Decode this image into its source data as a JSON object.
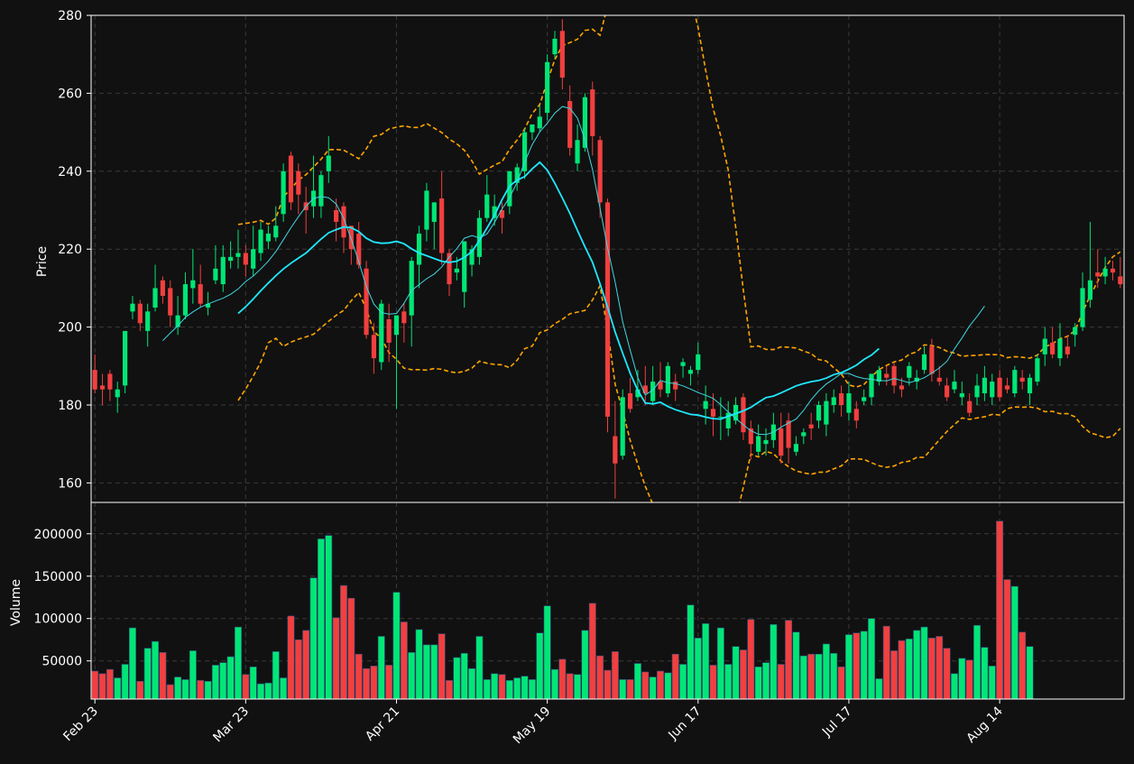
{
  "chart_data": {
    "type": "candlestick",
    "x_tick_labels": [
      "Feb 23",
      "Mar 23",
      "Apr 21",
      "May 19",
      "Jun 17",
      "Jul 17",
      "Aug 14"
    ],
    "price_panel": {
      "ylabel": "Price",
      "ylim": [
        155,
        280
      ],
      "y_ticks": [
        "160",
        "180",
        "200",
        "220",
        "240",
        "260",
        "280"
      ],
      "grid": true
    },
    "volume_panel": {
      "ylabel": "Volume",
      "ylim": [
        5000,
        237000
      ],
      "y_ticks": [
        "50000",
        "100000",
        "150000",
        "200000"
      ],
      "grid": true
    },
    "colors": {
      "up": "#00e676",
      "down": "#f23f3f",
      "ma_fast": "#3fd8e0",
      "ma_slow": "#1fe8ff",
      "bollinger": "#ffa500",
      "background": "#111111",
      "axes": "#ffffff"
    },
    "candles": [
      [
        189,
        184,
        193,
        183
      ],
      [
        185,
        184,
        188,
        180
      ],
      [
        188,
        184,
        189,
        181
      ],
      [
        182,
        184,
        186,
        178
      ],
      [
        185,
        199,
        199,
        183
      ],
      [
        204,
        206,
        208,
        202
      ],
      [
        206,
        201,
        207,
        199
      ],
      [
        199,
        204,
        206,
        195
      ],
      [
        205,
        210,
        216,
        204
      ],
      [
        212,
        208,
        213,
        206
      ],
      [
        210,
        203,
        212,
        200
      ],
      [
        200,
        203,
        208,
        198
      ],
      [
        203,
        211,
        214,
        202
      ],
      [
        210,
        212,
        220,
        206
      ],
      [
        211,
        206,
        216,
        205
      ],
      [
        205,
        206,
        209,
        203
      ],
      [
        212,
        215,
        221,
        211
      ],
      [
        211,
        218,
        221,
        209
      ],
      [
        217,
        218,
        222,
        215
      ],
      [
        218,
        219,
        225,
        215
      ],
      [
        219,
        216,
        221,
        213
      ],
      [
        215,
        220,
        226,
        213
      ],
      [
        219,
        225,
        227,
        217
      ],
      [
        222,
        224,
        226,
        220
      ],
      [
        223,
        226,
        231,
        222
      ],
      [
        229,
        240,
        242,
        227
      ],
      [
        244,
        232,
        245,
        230
      ],
      [
        240,
        234,
        242,
        229
      ],
      [
        232,
        230,
        236,
        224
      ],
      [
        231,
        235,
        244,
        228
      ],
      [
        231,
        239,
        240,
        228
      ],
      [
        240,
        244,
        249,
        237
      ],
      [
        230,
        227,
        233,
        222
      ],
      [
        231,
        223,
        232,
        219
      ],
      [
        226,
        220,
        225,
        216
      ],
      [
        224,
        216,
        227,
        215
      ],
      [
        215,
        198,
        217,
        197
      ],
      [
        198,
        192,
        201,
        188
      ],
      [
        191,
        206,
        207,
        189
      ],
      [
        202,
        196,
        206,
        191
      ],
      [
        198,
        203,
        203,
        179
      ],
      [
        204,
        201,
        206,
        196
      ],
      [
        203,
        217,
        218,
        195
      ],
      [
        216,
        224,
        226,
        210
      ],
      [
        225,
        235,
        237,
        222
      ],
      [
        227,
        232,
        232,
        220
      ],
      [
        233,
        219,
        240,
        216
      ],
      [
        219,
        211,
        220,
        208
      ],
      [
        214,
        215,
        218,
        212
      ],
      [
        209,
        222,
        222,
        205
      ],
      [
        216,
        220,
        221,
        213
      ],
      [
        218,
        228,
        230,
        216
      ],
      [
        228,
        234,
        239,
        227
      ],
      [
        228,
        231,
        234,
        226
      ],
      [
        230,
        228,
        232,
        224
      ],
      [
        231,
        240,
        240,
        229
      ],
      [
        237,
        241,
        242,
        235
      ],
      [
        240,
        250,
        251,
        238
      ],
      [
        250,
        252,
        252,
        248
      ],
      [
        251,
        254,
        257,
        250
      ],
      [
        255,
        268,
        270,
        253
      ],
      [
        270,
        274,
        276,
        269
      ],
      [
        276,
        264,
        279,
        261
      ],
      [
        258,
        246,
        262,
        244
      ],
      [
        242,
        248,
        252,
        240
      ],
      [
        246,
        259,
        260,
        245
      ],
      [
        261,
        249,
        263,
        244
      ],
      [
        248,
        232,
        249,
        228
      ],
      [
        232,
        177,
        233,
        173
      ],
      [
        172,
        165,
        181,
        156
      ],
      [
        167,
        182,
        184,
        166
      ],
      [
        183,
        179,
        187,
        178
      ],
      [
        182,
        184,
        189,
        181
      ],
      [
        185,
        183,
        190,
        180
      ],
      [
        181,
        186,
        190,
        180
      ],
      [
        186,
        184,
        191,
        182
      ],
      [
        183,
        190,
        191,
        182
      ],
      [
        186,
        184,
        188,
        181
      ],
      [
        190,
        191,
        192,
        187
      ],
      [
        188,
        189,
        190,
        185
      ],
      [
        189,
        193,
        196,
        188
      ],
      [
        179,
        181,
        185,
        175
      ],
      [
        179,
        177,
        183,
        172
      ],
      [
        177,
        177,
        182,
        171
      ],
      [
        174,
        178,
        181,
        172
      ],
      [
        176,
        180,
        182,
        175
      ],
      [
        182,
        173,
        183,
        171
      ],
      [
        174,
        170,
        176,
        166
      ],
      [
        168,
        172,
        175,
        167
      ],
      [
        170,
        171,
        174,
        167
      ],
      [
        171,
        175,
        178,
        169
      ],
      [
        174,
        167,
        178,
        165
      ],
      [
        176,
        169,
        178,
        165
      ],
      [
        168,
        170,
        172,
        167
      ],
      [
        172,
        173,
        174,
        170
      ],
      [
        175,
        174,
        178,
        171
      ],
      [
        176,
        180,
        181,
        174
      ],
      [
        175,
        181,
        183,
        172
      ],
      [
        180,
        182,
        184,
        178
      ],
      [
        183,
        180,
        185,
        177
      ],
      [
        178,
        183,
        186,
        176
      ],
      [
        179,
        176,
        181,
        174
      ],
      [
        181,
        182,
        184,
        180
      ],
      [
        182,
        188,
        188,
        180
      ],
      [
        186,
        189,
        190,
        185
      ],
      [
        188,
        187,
        190,
        185
      ],
      [
        190,
        185,
        191,
        183
      ],
      [
        185,
        184,
        187,
        182
      ],
      [
        187,
        190,
        191,
        185
      ],
      [
        186,
        187,
        189,
        184
      ],
      [
        189,
        193,
        195,
        188
      ],
      [
        195,
        188,
        197,
        186
      ],
      [
        187,
        186,
        190,
        185
      ],
      [
        185,
        182,
        187,
        181
      ],
      [
        184,
        186,
        189,
        183
      ],
      [
        182,
        183,
        186,
        180
      ],
      [
        181,
        178,
        183,
        177
      ],
      [
        182,
        185,
        188,
        180
      ],
      [
        183,
        187,
        190,
        181
      ],
      [
        182,
        186,
        188,
        180
      ],
      [
        187,
        182,
        189,
        181
      ],
      [
        185,
        184,
        187,
        183
      ],
      [
        183,
        189,
        190,
        182
      ],
      [
        187,
        186,
        189,
        184
      ],
      [
        183,
        187,
        188,
        180
      ],
      [
        186,
        192,
        193,
        185
      ],
      [
        193,
        197,
        200,
        190
      ],
      [
        196,
        193,
        200,
        192
      ],
      [
        192,
        197,
        201,
        190
      ],
      [
        195,
        193,
        198,
        192
      ],
      [
        198,
        200,
        201,
        195
      ],
      [
        200,
        210,
        214,
        199
      ],
      [
        207,
        212,
        227,
        205
      ],
      [
        214,
        213,
        220,
        210
      ],
      [
        213,
        215,
        218,
        211
      ],
      [
        215,
        214,
        217,
        212
      ],
      [
        213,
        211,
        218,
        210
      ]
    ],
    "volume": [
      38000,
      35000,
      40000,
      30000,
      46000,
      89000,
      26000,
      65000,
      73000,
      60000,
      22000,
      31000,
      28000,
      62000,
      27000,
      26000,
      45000,
      48000,
      55000,
      90000,
      34000,
      43000,
      23000,
      24000,
      61000,
      30000,
      103000,
      75000,
      86000,
      148000,
      194000,
      198000,
      101000,
      139000,
      124000,
      58000,
      41000,
      44000,
      79000,
      45000,
      131000,
      96000,
      60000,
      87000,
      69000,
      69000,
      82000,
      27000,
      54000,
      59000,
      41000,
      79000,
      28000,
      35000,
      34000,
      27000,
      30000,
      32000,
      28000,
      83000,
      115000,
      40000,
      52000,
      35000,
      34000,
      86000,
      118000,
      56000,
      39000,
      61000,
      28000,
      28000,
      47000,
      37000,
      31000,
      38000,
      36000,
      58000,
      46000,
      116000,
      77000,
      94000,
      45000,
      89000,
      46000,
      67000,
      63000,
      99000,
      43000,
      48000,
      93000,
      46000,
      98000,
      84000,
      56000,
      58000,
      58000,
      70000,
      59000,
      43000,
      81000,
      83000,
      85000,
      100000,
      29000,
      91000,
      62000,
      74000,
      76000,
      86000,
      90000,
      77000,
      79000,
      65000,
      35000,
      53000,
      51000,
      92000,
      66000,
      44000,
      215000,
      146000,
      138000,
      84000,
      67000
    ],
    "ma_fast": [
      null,
      null,
      null,
      null,
      null,
      null,
      null,
      null,
      null,
      196.5,
      198.5,
      200.3,
      202.5,
      203.9,
      205.1,
      205.9,
      206.7,
      207.4,
      208.4,
      209.8,
      211.7,
      213.1,
      214.9,
      216.9,
      219.4,
      222.4,
      225.5,
      228.3,
      231.0,
      233.0,
      233.5,
      233.2,
      231.6,
      227.9,
      222.6,
      216.8,
      210.4,
      205.9,
      203.7,
      203.3,
      203.5,
      206.1,
      209.4,
      210.9,
      212.4,
      213.6,
      215.4,
      218.0,
      220.1,
      222.8,
      223.5,
      222.9,
      223.9,
      226.8,
      230.3,
      233.3,
      237.1,
      242.4,
      246.8,
      250.1,
      252.3,
      254.9,
      256.6,
      256.1,
      253.6,
      248.1,
      240.4,
      230.5,
      220.3,
      211.5,
      201.4,
      194.0,
      187.1,
      182.6,
      183.8,
      186.3,
      185.7,
      185.5,
      184.9,
      184.1,
      183.2,
      182.5,
      181.7,
      180.1,
      178.2,
      176.6,
      174.9,
      173.4,
      172.5,
      172.4,
      173.0,
      174.3,
      175.4,
      176.4,
      178.6,
      181.4,
      183.6,
      185.4,
      186.7,
      188.1,
      188.1,
      187.3,
      186.8,
      186.6,
      186.3,
      186.2,
      186.8,
      186.3,
      185.7,
      186.3,
      187.0,
      188.2,
      189.5,
      191.2,
      194.4,
      197.2,
      200.3,
      202.7,
      205.4
    ],
    "ma_slow": [
      null,
      null,
      null,
      null,
      null,
      null,
      null,
      null,
      null,
      null,
      null,
      null,
      null,
      null,
      null,
      null,
      null,
      null,
      null,
      203.5,
      205.2,
      207.2,
      209.3,
      211.3,
      213.2,
      214.9,
      216.4,
      217.7,
      219.0,
      220.8,
      222.6,
      224.2,
      225.0,
      225.7,
      225.5,
      224.5,
      222.8,
      221.8,
      221.5,
      221.6,
      222.0,
      221.4,
      220.1,
      219.0,
      218.3,
      217.6,
      216.9,
      216.6,
      216.9,
      217.9,
      219.4,
      222.2,
      225.4,
      228.7,
      232.7,
      236.2,
      237.7,
      238.6,
      240.6,
      242.3,
      240.3,
      236.9,
      233.1,
      229.2,
      224.8,
      220.6,
      216.6,
      211.1,
      205.1,
      198.7,
      193.3,
      188.1,
      183.8,
      180.5,
      180.3,
      180.7,
      179.6,
      178.8,
      178.2,
      177.6,
      177.4,
      176.9,
      176.5,
      176.4,
      177.1,
      177.8,
      178.5,
      179.4,
      180.7,
      181.9,
      182.3,
      183.1,
      184.0,
      184.9,
      185.5,
      186.0,
      186.3,
      186.9,
      187.8,
      188.3,
      189.2,
      190.2,
      191.7,
      192.8,
      194.5
    ]
  }
}
